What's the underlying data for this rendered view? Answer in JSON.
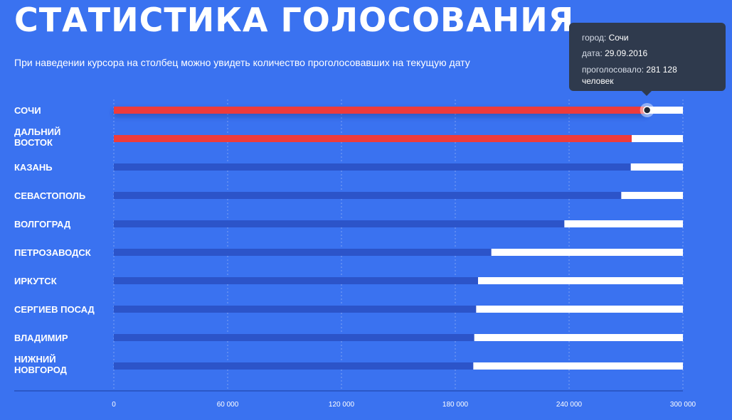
{
  "title": "СТАТИСТИКА ГОЛОСОВАНИЯ",
  "subtitle": "При наведении курсора на столбец можно увидеть количество проголосовавших на текущую дату",
  "tooltip": {
    "city_key": "город:",
    "city_val": "Сочи",
    "date_key": "дата:",
    "date_val": "29.09.2016",
    "votes_key": "проголосовало:",
    "votes_val": "281 128",
    "votes_unit": "человек"
  },
  "colors": {
    "background": "#3a72f0",
    "bar_default": "#2c54c9",
    "bar_highlight": "#ee3b3b",
    "track": "#ffffff",
    "tooltip_bg": "#2f3a4d"
  },
  "chart_data": {
    "type": "bar",
    "orientation": "horizontal",
    "categories": [
      [
        "СОЧИ"
      ],
      [
        "ДАЛЬНИЙ",
        "ВОСТОК"
      ],
      [
        "КАЗАНЬ"
      ],
      [
        "СЕВАСТОПОЛЬ"
      ],
      [
        "ВОЛГОГРАД"
      ],
      [
        "ПЕТРОЗАВОДСК"
      ],
      [
        "ИРКУТСК"
      ],
      [
        "СЕРГИЕВ ПОСАД"
      ],
      [
        "ВЛАДИМИР"
      ],
      [
        "НИЖНИЙ",
        "НОВГОРОД"
      ]
    ],
    "values": [
      281128,
      273000,
      272500,
      267500,
      237500,
      199000,
      192000,
      191000,
      190000,
      189500
    ],
    "highlighted": [
      true,
      true,
      false,
      false,
      false,
      false,
      false,
      false,
      false,
      false
    ],
    "xlim": [
      0,
      300000
    ],
    "xticks": [
      0,
      60000,
      120000,
      180000,
      240000,
      300000
    ],
    "xtick_labels": [
      "0",
      "60 000",
      "120 000",
      "180 000",
      "240 000",
      "300 000"
    ],
    "grid": true,
    "hovered_index": 0
  }
}
